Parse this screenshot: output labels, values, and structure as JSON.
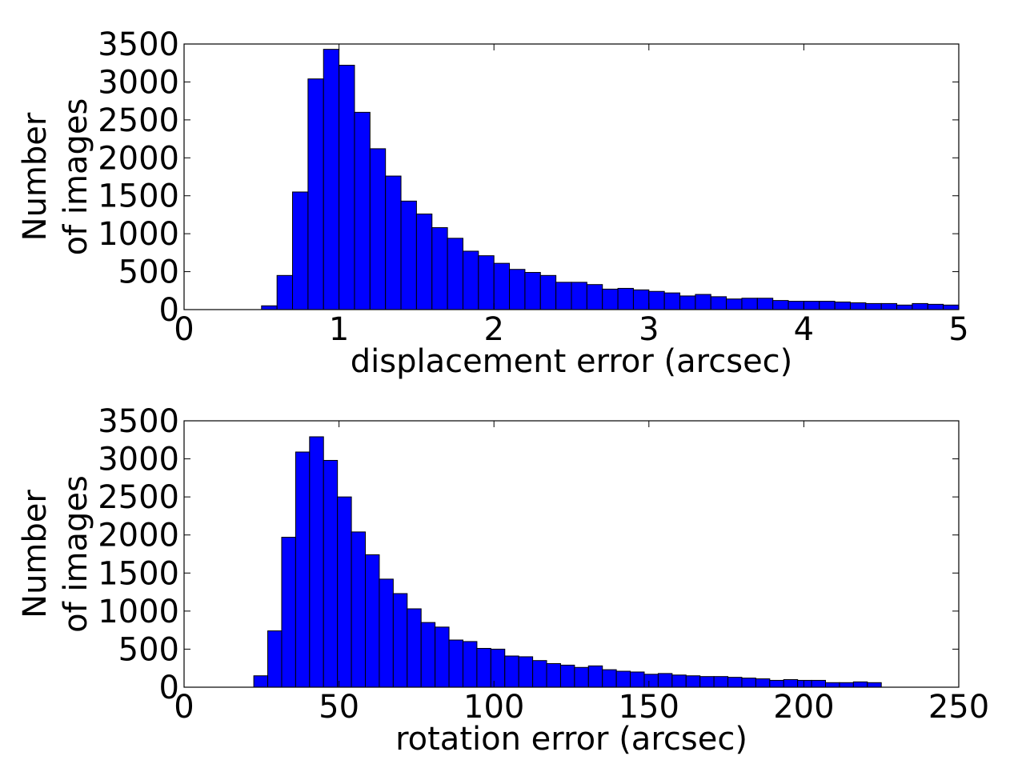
{
  "chart_data": [
    {
      "type": "bar",
      "xlabel": "displacement error (arcsec)",
      "ylabel": [
        "Number",
        "of images"
      ],
      "xlim": [
        0,
        5
      ],
      "ylim": [
        0,
        3500
      ],
      "xticks": [
        0,
        1,
        2,
        3,
        4,
        5
      ],
      "xtick_labels": [
        "0",
        "1",
        "2",
        "3",
        "4",
        "5"
      ],
      "yticks": [
        0,
        500,
        1000,
        1500,
        2000,
        2500,
        3000,
        3500
      ],
      "ytick_labels": [
        "0",
        "500",
        "1000",
        "1500",
        "2000",
        "2500",
        "3000",
        "3500"
      ],
      "bar_color": "#0000ff",
      "bin_width": 0.1,
      "x": [
        0.55,
        0.65,
        0.75,
        0.85,
        0.95,
        1.05,
        1.15,
        1.25,
        1.35,
        1.45,
        1.55,
        1.65,
        1.75,
        1.85,
        1.95,
        2.05,
        2.15,
        2.25,
        2.35,
        2.45,
        2.55,
        2.65,
        2.75,
        2.85,
        2.95,
        3.05,
        3.15,
        3.25,
        3.35,
        3.45,
        3.55,
        3.65,
        3.75,
        3.85,
        3.95,
        4.05,
        4.15,
        4.25,
        4.35,
        4.45,
        4.55,
        4.65,
        4.75,
        4.85,
        4.95
      ],
      "values": [
        50,
        450,
        1550,
        3040,
        3430,
        3220,
        2600,
        2120,
        1760,
        1430,
        1260,
        1080,
        940,
        770,
        710,
        610,
        530,
        490,
        450,
        360,
        360,
        330,
        270,
        280,
        260,
        240,
        220,
        180,
        200,
        170,
        140,
        150,
        150,
        120,
        110,
        110,
        110,
        100,
        90,
        80,
        80,
        60,
        80,
        70,
        60
      ]
    },
    {
      "type": "bar",
      "xlabel": "rotation error (arcsec)",
      "ylabel": [
        "Number",
        "of images"
      ],
      "xlim": [
        0,
        250
      ],
      "ylim": [
        0,
        3500
      ],
      "xticks": [
        0,
        50,
        100,
        150,
        200,
        250
      ],
      "xtick_labels": [
        "0",
        "50",
        "100",
        "150",
        "200",
        "250"
      ],
      "yticks": [
        0,
        500,
        1000,
        1500,
        2000,
        2500,
        3000,
        3500
      ],
      "ytick_labels": [
        "0",
        "500",
        "1000",
        "1500",
        "2000",
        "2500",
        "3000",
        "3500"
      ],
      "bar_color": "#0000ff",
      "bin_width": 4.5,
      "x": [
        24.75,
        29.25,
        33.75,
        38.25,
        42.75,
        47.25,
        51.75,
        56.25,
        60.75,
        65.25,
        69.75,
        74.25,
        78.75,
        83.25,
        87.75,
        92.25,
        96.75,
        101.25,
        105.75,
        110.25,
        114.75,
        119.25,
        123.75,
        128.25,
        132.75,
        137.25,
        141.75,
        146.25,
        150.75,
        155.25,
        159.75,
        164.25,
        168.75,
        173.25,
        177.75,
        182.25,
        186.75,
        191.25,
        195.75,
        200.25,
        204.75,
        209.25,
        213.75,
        218.25,
        222.75
      ],
      "values": [
        150,
        740,
        1970,
        3090,
        3290,
        2980,
        2500,
        2040,
        1740,
        1420,
        1230,
        1030,
        850,
        790,
        620,
        600,
        510,
        500,
        410,
        400,
        350,
        310,
        290,
        260,
        280,
        230,
        210,
        200,
        170,
        180,
        160,
        150,
        140,
        140,
        130,
        120,
        110,
        90,
        100,
        90,
        90,
        60,
        60,
        70,
        60
      ]
    }
  ]
}
